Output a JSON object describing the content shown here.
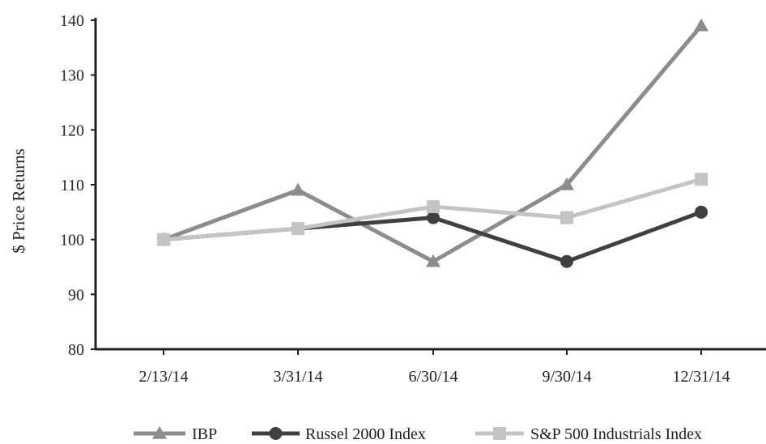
{
  "chart_data": {
    "type": "line",
    "categories": [
      "2/13/14",
      "3/31/14",
      "6/30/14",
      "9/30/14",
      "12/31/14"
    ],
    "ylabel": "$ Price Returns",
    "ylim": [
      80,
      140
    ],
    "yticks": [
      80,
      90,
      100,
      110,
      120,
      130,
      140
    ],
    "grid": false,
    "legend_position": "bottom",
    "series": [
      {
        "name": "IBP",
        "values": [
          100,
          109,
          96,
          110,
          139
        ],
        "color": "#8c8c8c",
        "marker": "triangle"
      },
      {
        "name": "Russel 2000 Index",
        "values": [
          100,
          102,
          104,
          96,
          105
        ],
        "color": "#404040",
        "marker": "circle"
      },
      {
        "name": "S&P 500 Industrials Index",
        "values": [
          100,
          102,
          106,
          104,
          111
        ],
        "color": "#c4c4c4",
        "marker": "square"
      }
    ]
  }
}
